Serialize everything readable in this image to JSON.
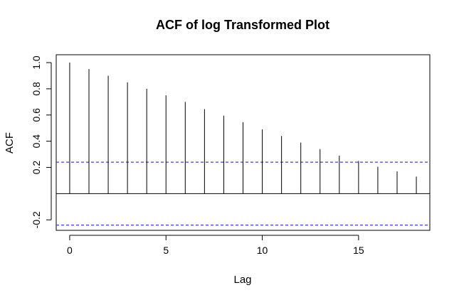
{
  "chart_data": {
    "type": "bar",
    "title": "ACF of log Transformed Plot",
    "xlabel": "Lag",
    "ylabel": "ACF",
    "x": [
      0,
      1,
      2,
      3,
      4,
      5,
      6,
      7,
      8,
      9,
      10,
      11,
      12,
      13,
      14,
      15,
      16,
      17,
      18
    ],
    "values": [
      1.0,
      0.95,
      0.9,
      0.85,
      0.8,
      0.75,
      0.7,
      0.645,
      0.595,
      0.545,
      0.49,
      0.44,
      0.39,
      0.34,
      0.29,
      0.25,
      0.205,
      0.17,
      0.13
    ],
    "xlim": [
      -0.7,
      18.7
    ],
    "ylim": [
      -0.28,
      1.06
    ],
    "x_ticks": [
      0,
      5,
      10,
      15
    ],
    "x_tick_labels": [
      "0",
      "5",
      "10",
      "15"
    ],
    "y_ticks": [
      -0.2,
      0.2,
      0.4,
      0.6,
      0.8,
      1.0
    ],
    "y_tick_labels": [
      "-0.2",
      "0.2",
      "0.4",
      "0.6",
      "0.8",
      "1.0"
    ],
    "confidence_bounds": [
      0.24,
      -0.24
    ],
    "zero_line": 0,
    "colors": {
      "bars": "#000000",
      "confidence": "#4040c8",
      "axis": "#000000"
    },
    "grid": false,
    "legend": "none"
  }
}
